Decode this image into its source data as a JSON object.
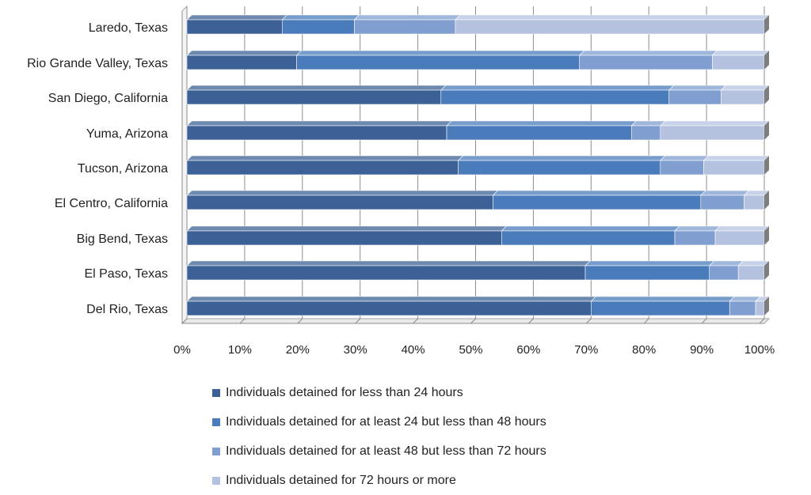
{
  "chart_data": {
    "type": "bar",
    "orientation": "horizontal",
    "stacked": "percent",
    "categories": [
      "Laredo, Texas",
      "Rio Grande Valley, Texas",
      "San Diego, California",
      "Yuma, Arizona",
      "Tucson, Arizona",
      "El Centro, California",
      "Big Bend, Texas",
      "El Paso, Texas",
      "Del Rio, Texas"
    ],
    "series": [
      {
        "name": "Individuals detained for less than 24 hours",
        "color": "#3c6196",
        "values": [
          16.5,
          19,
          44,
          45,
          47,
          53,
          54.5,
          69,
          70
        ]
      },
      {
        "name": "Individuals detained for at least 24 but less than 48 hours",
        "color": "#4a7cbc",
        "values": [
          12.5,
          49,
          39.5,
          32,
          35,
          36,
          30,
          21.5,
          24
        ]
      },
      {
        "name": "Individuals detained for at least 48 but less than 72 hours",
        "color": "#809fd0",
        "values": [
          17.5,
          23,
          9,
          5,
          7.5,
          7.5,
          7,
          5,
          4.5
        ]
      },
      {
        "name": "Individuals detained for 72 hours or more",
        "color": "#b4c2df",
        "values": [
          53.5,
          9,
          7.5,
          18,
          10.5,
          3.5,
          8.5,
          4.5,
          1.5
        ]
      }
    ],
    "x_ticks": [
      "0%",
      "10%",
      "20%",
      "30%",
      "40%",
      "50%",
      "60%",
      "70%",
      "80%",
      "90%",
      "100%"
    ],
    "xlim": [
      0,
      100
    ],
    "grid": true,
    "legend_position": "bottom"
  }
}
